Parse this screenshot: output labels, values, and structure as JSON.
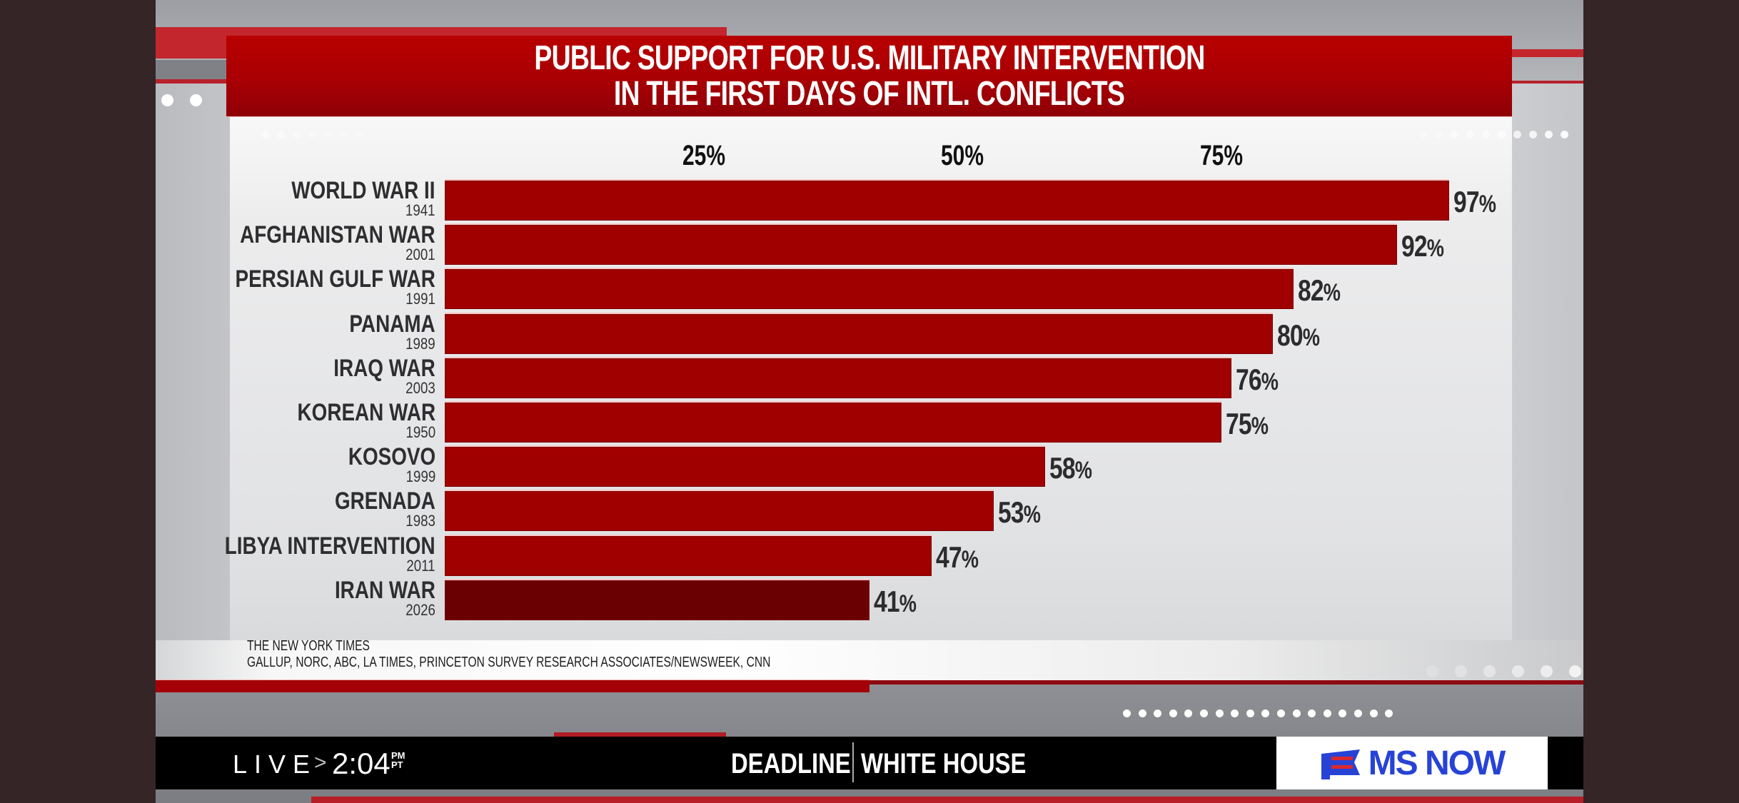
{
  "broadcast": {
    "live_label": "LIVE",
    "live_arrow": ">",
    "time": "2:04",
    "ampm": "PM",
    "timezone": "PT",
    "show_name_left": "DEADLINE",
    "show_name_right": "WHITE HOUSE",
    "network_logo": "MS NOW",
    "network_logo_icon": "flag-icon",
    "colors": {
      "brand_blue": "#2743d6",
      "brand_red": "#d8282f",
      "banner_red": "#b00000",
      "bar_red": "#a00000",
      "highlight_bar": "#6b0003"
    }
  },
  "chart_data": {
    "type": "bar",
    "orientation": "horizontal",
    "title": "PUBLIC SUPPORT FOR U.S. MILITARY INTERVENTION IN THE FIRST DAYS OF INTL. CONFLICTS",
    "title_lines": [
      "PUBLIC SUPPORT FOR U.S. MILITARY INTERVENTION",
      "IN THE FIRST DAYS OF INTL. CONFLICTS"
    ],
    "xlabel": "",
    "ylabel": "",
    "xlim": [
      0,
      100
    ],
    "x_ticks": [
      25,
      50,
      75
    ],
    "x_tick_labels": [
      "25%",
      "50%",
      "75%"
    ],
    "grid": false,
    "legend": "none",
    "categories": [
      {
        "name": "WORLD WAR II",
        "year": "1941"
      },
      {
        "name": "AFGHANISTAN WAR",
        "year": "2001"
      },
      {
        "name": "PERSIAN GULF WAR",
        "year": "1991"
      },
      {
        "name": "PANAMA",
        "year": "1989"
      },
      {
        "name": "IRAQ WAR",
        "year": "2003"
      },
      {
        "name": "KOREAN WAR",
        "year": "1950"
      },
      {
        "name": "KOSOVO",
        "year": "1999"
      },
      {
        "name": "GRENADA",
        "year": "1983"
      },
      {
        "name": "LIBYA INTERVENTION",
        "year": "2011"
      },
      {
        "name": "IRAN WAR",
        "year": "2026"
      }
    ],
    "values": [
      97,
      92,
      82,
      80,
      76,
      75,
      58,
      53,
      47,
      41
    ],
    "value_labels": [
      "97",
      "92",
      "82",
      "80",
      "76",
      "75",
      "58",
      "53",
      "47",
      "41"
    ],
    "value_suffix": "%",
    "highlighted_category": "IRAN WAR",
    "sources": [
      "THE NEW YORK TIMES",
      "GALLUP, NORC, ABC, LA TIMES, PRINCETON SURVEY RESEARCH ASSOCIATES/NEWSWEEK, CNN"
    ]
  }
}
